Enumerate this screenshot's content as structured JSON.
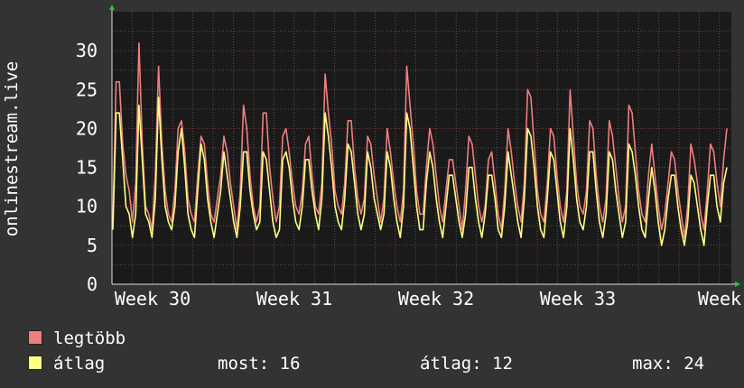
{
  "chart_data": {
    "type": "line",
    "ylabel": "onlinestream.live",
    "xlabel": "",
    "ylim": [
      0,
      35
    ],
    "yticks": [
      "0",
      "5",
      "10",
      "15",
      "20",
      "25",
      "30"
    ],
    "xticks": [
      "Week 30",
      "Week 31",
      "Week 32",
      "Week 33",
      "Week"
    ],
    "grid": true,
    "legend_position": "bottom-left",
    "series": [
      {
        "name": "legtöbb",
        "color": "#f07e7e",
        "values": [
          8,
          26,
          26,
          18,
          14,
          12,
          8,
          13,
          31,
          18,
          10,
          9,
          7,
          14,
          28,
          18,
          12,
          9,
          8,
          12,
          20,
          21,
          17,
          11,
          9,
          8,
          14,
          19,
          18,
          13,
          9,
          8,
          11,
          14,
          19,
          17,
          13,
          10,
          7,
          12,
          23,
          20,
          14,
          10,
          8,
          10,
          22,
          22,
          15,
          11,
          8,
          10,
          19,
          20,
          17,
          13,
          10,
          9,
          12,
          18,
          19,
          14,
          10,
          9,
          13,
          27,
          22,
          18,
          12,
          10,
          9,
          13,
          21,
          21,
          15,
          11,
          9,
          11,
          19,
          18,
          14,
          11,
          8,
          11,
          20,
          17,
          13,
          10,
          8,
          12,
          28,
          23,
          18,
          12,
          9,
          9,
          15,
          20,
          18,
          14,
          10,
          8,
          12,
          16,
          16,
          13,
          10,
          7,
          12,
          19,
          18,
          14,
          10,
          8,
          10,
          16,
          17,
          13,
          9,
          7,
          12,
          20,
          17,
          13,
          10,
          8,
          13,
          25,
          24,
          18,
          12,
          9,
          8,
          13,
          20,
          19,
          14,
          10,
          8,
          12,
          25,
          19,
          13,
          10,
          9,
          12,
          21,
          20,
          14,
          10,
          8,
          11,
          21,
          19,
          15,
          11,
          8,
          10,
          23,
          22,
          17,
          12,
          9,
          8,
          14,
          18,
          14,
          10,
          7,
          9,
          13,
          17,
          16,
          12,
          9,
          6,
          10,
          18,
          16,
          13,
          9,
          7,
          12,
          18,
          17,
          13,
          10,
          16,
          20
        ]
      },
      {
        "name": "átlag",
        "color": "#ffff80",
        "values": [
          7,
          22,
          22,
          16,
          10,
          9,
          6,
          9,
          23,
          16,
          9,
          8,
          6,
          11,
          24,
          16,
          10,
          8,
          7,
          10,
          17,
          20,
          15,
          9,
          7,
          6,
          12,
          18,
          16,
          11,
          8,
          6,
          9,
          12,
          17,
          14,
          11,
          8,
          6,
          10,
          17,
          17,
          12,
          9,
          7,
          8,
          17,
          16,
          12,
          8,
          6,
          7,
          16,
          17,
          15,
          11,
          8,
          7,
          10,
          16,
          16,
          12,
          9,
          7,
          11,
          22,
          19,
          15,
          10,
          8,
          7,
          11,
          18,
          17,
          13,
          9,
          7,
          9,
          17,
          15,
          11,
          9,
          7,
          9,
          17,
          15,
          11,
          8,
          6,
          10,
          22,
          20,
          15,
          10,
          7,
          7,
          13,
          17,
          15,
          11,
          8,
          6,
          10,
          14,
          14,
          11,
          8,
          6,
          9,
          15,
          15,
          11,
          8,
          6,
          9,
          14,
          14,
          11,
          7,
          6,
          10,
          17,
          14,
          11,
          8,
          6,
          11,
          20,
          19,
          15,
          10,
          7,
          6,
          11,
          17,
          16,
          12,
          8,
          6,
          10,
          20,
          16,
          11,
          8,
          7,
          10,
          17,
          17,
          12,
          8,
          6,
          9,
          17,
          16,
          12,
          9,
          6,
          8,
          18,
          17,
          14,
          10,
          7,
          6,
          11,
          15,
          12,
          8,
          5,
          7,
          11,
          14,
          14,
          10,
          7,
          5,
          8,
          14,
          13,
          10,
          7,
          5,
          10,
          14,
          14,
          10,
          8,
          13,
          15
        ]
      }
    ]
  },
  "legend": [
    {
      "label": "legtöbb",
      "color": "#f07e7e"
    },
    {
      "label": "átlag",
      "color": "#ffff80"
    }
  ],
  "stats": {
    "most": "most: 16",
    "atlag": "átlag: 12",
    "max": "max: 24"
  }
}
